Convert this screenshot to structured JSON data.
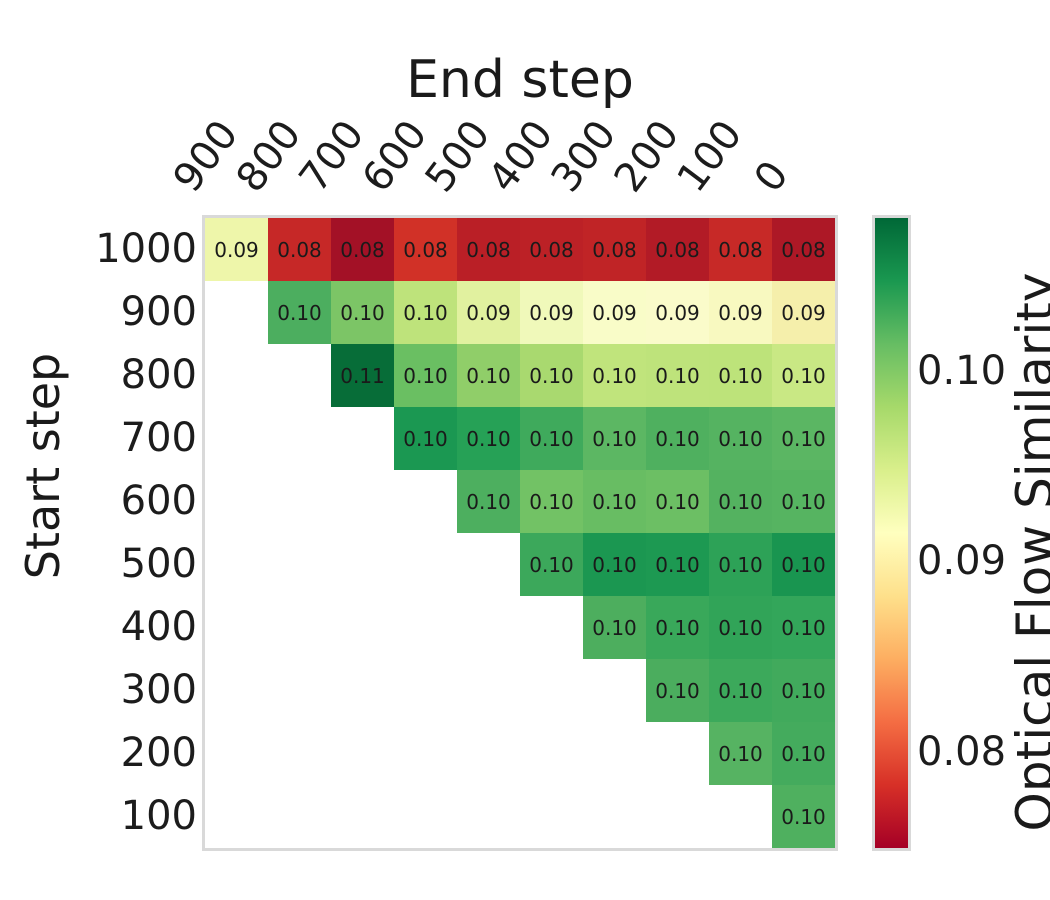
{
  "chart_data": {
    "type": "heatmap",
    "title": "End step",
    "xlabel": "End step",
    "ylabel": "Start step",
    "x_ticklabels": [
      "900",
      "800",
      "700",
      "600",
      "500",
      "400",
      "300",
      "200",
      "100",
      "0"
    ],
    "y_ticklabels": [
      "1000",
      "900",
      "800",
      "700",
      "600",
      "500",
      "400",
      "300",
      "200",
      "100"
    ],
    "colorbar": {
      "label": "Optical Flow Similarity",
      "tick_labels": [
        "0.10",
        "0.09",
        "0.08"
      ],
      "cmap": "RdYlGn",
      "gradient_top_to_bottom": [
        "#006837",
        "#1a9850",
        "#66bd63",
        "#a6d96a",
        "#d9ef8b",
        "#ffffbf",
        "#fee08b",
        "#fdae61",
        "#f46d43",
        "#d73027",
        "#a50026"
      ]
    },
    "rows": [
      {
        "start": "1000",
        "values": [
          "0.09",
          "0.08",
          "0.08",
          "0.08",
          "0.08",
          "0.08",
          "0.08",
          "0.08",
          "0.08",
          "0.08"
        ],
        "colors": [
          "#eef6aa",
          "#c62827",
          "#a31126",
          "#d13127",
          "#ba1f26",
          "#bc2126",
          "#c02426",
          "#b21b26",
          "#c72927",
          "#ad1826"
        ]
      },
      {
        "start": "900",
        "values": [
          "0.10",
          "0.10",
          "0.10",
          "0.09",
          "0.09",
          "0.09",
          "0.09",
          "0.09",
          "0.09"
        ],
        "colors": [
          "#4cae5f",
          "#7cc566",
          "#bee37b",
          "#e1f19f",
          "#f0f9ba",
          "#f9fcc8",
          "#fafbca",
          "#f8f9c0",
          "#f5efab"
        ]
      },
      {
        "start": "800",
        "values": [
          "0.11",
          "0.10",
          "0.10",
          "0.10",
          "0.10",
          "0.10",
          "0.10",
          "0.10"
        ],
        "colors": [
          "#076d38",
          "#6abf62",
          "#90ce69",
          "#a9d96f",
          "#c0e47c",
          "#bee37b",
          "#bde37a",
          "#c9e884"
        ]
      },
      {
        "start": "700",
        "values": [
          "0.10",
          "0.10",
          "0.10",
          "0.10",
          "0.10",
          "0.10",
          "0.10"
        ],
        "colors": [
          "#1b9852",
          "#26a156",
          "#3faa5c",
          "#5cb763",
          "#4fb05f",
          "#55b361",
          "#5bb663"
        ]
      },
      {
        "start": "600",
        "values": [
          "0.10",
          "0.10",
          "0.10",
          "0.10",
          "0.10",
          "0.10"
        ],
        "colors": [
          "#4daf5f",
          "#72c265",
          "#68bd63",
          "#6cbf64",
          "#54b260",
          "#56b461"
        ]
      },
      {
        "start": "500",
        "values": [
          "0.10",
          "0.10",
          "0.10",
          "0.10",
          "0.10"
        ],
        "colors": [
          "#3ca85b",
          "#1b9751",
          "#1d9952",
          "#2da257",
          "#199550"
        ]
      },
      {
        "start": "400",
        "values": [
          "0.10",
          "0.10",
          "0.10",
          "0.10"
        ],
        "colors": [
          "#4dae5e",
          "#39a85a",
          "#31a458",
          "#33a65a"
        ]
      },
      {
        "start": "300",
        "values": [
          "0.10",
          "0.10",
          "0.10"
        ],
        "colors": [
          "#4bad5e",
          "#3ca95b",
          "#41aa5c"
        ]
      },
      {
        "start": "200",
        "values": [
          "0.10",
          "0.10"
        ],
        "colors": [
          "#56b362",
          "#44ab5d"
        ]
      },
      {
        "start": "100",
        "values": [
          "0.10"
        ],
        "colors": [
          "#4fb05f"
        ]
      }
    ]
  }
}
